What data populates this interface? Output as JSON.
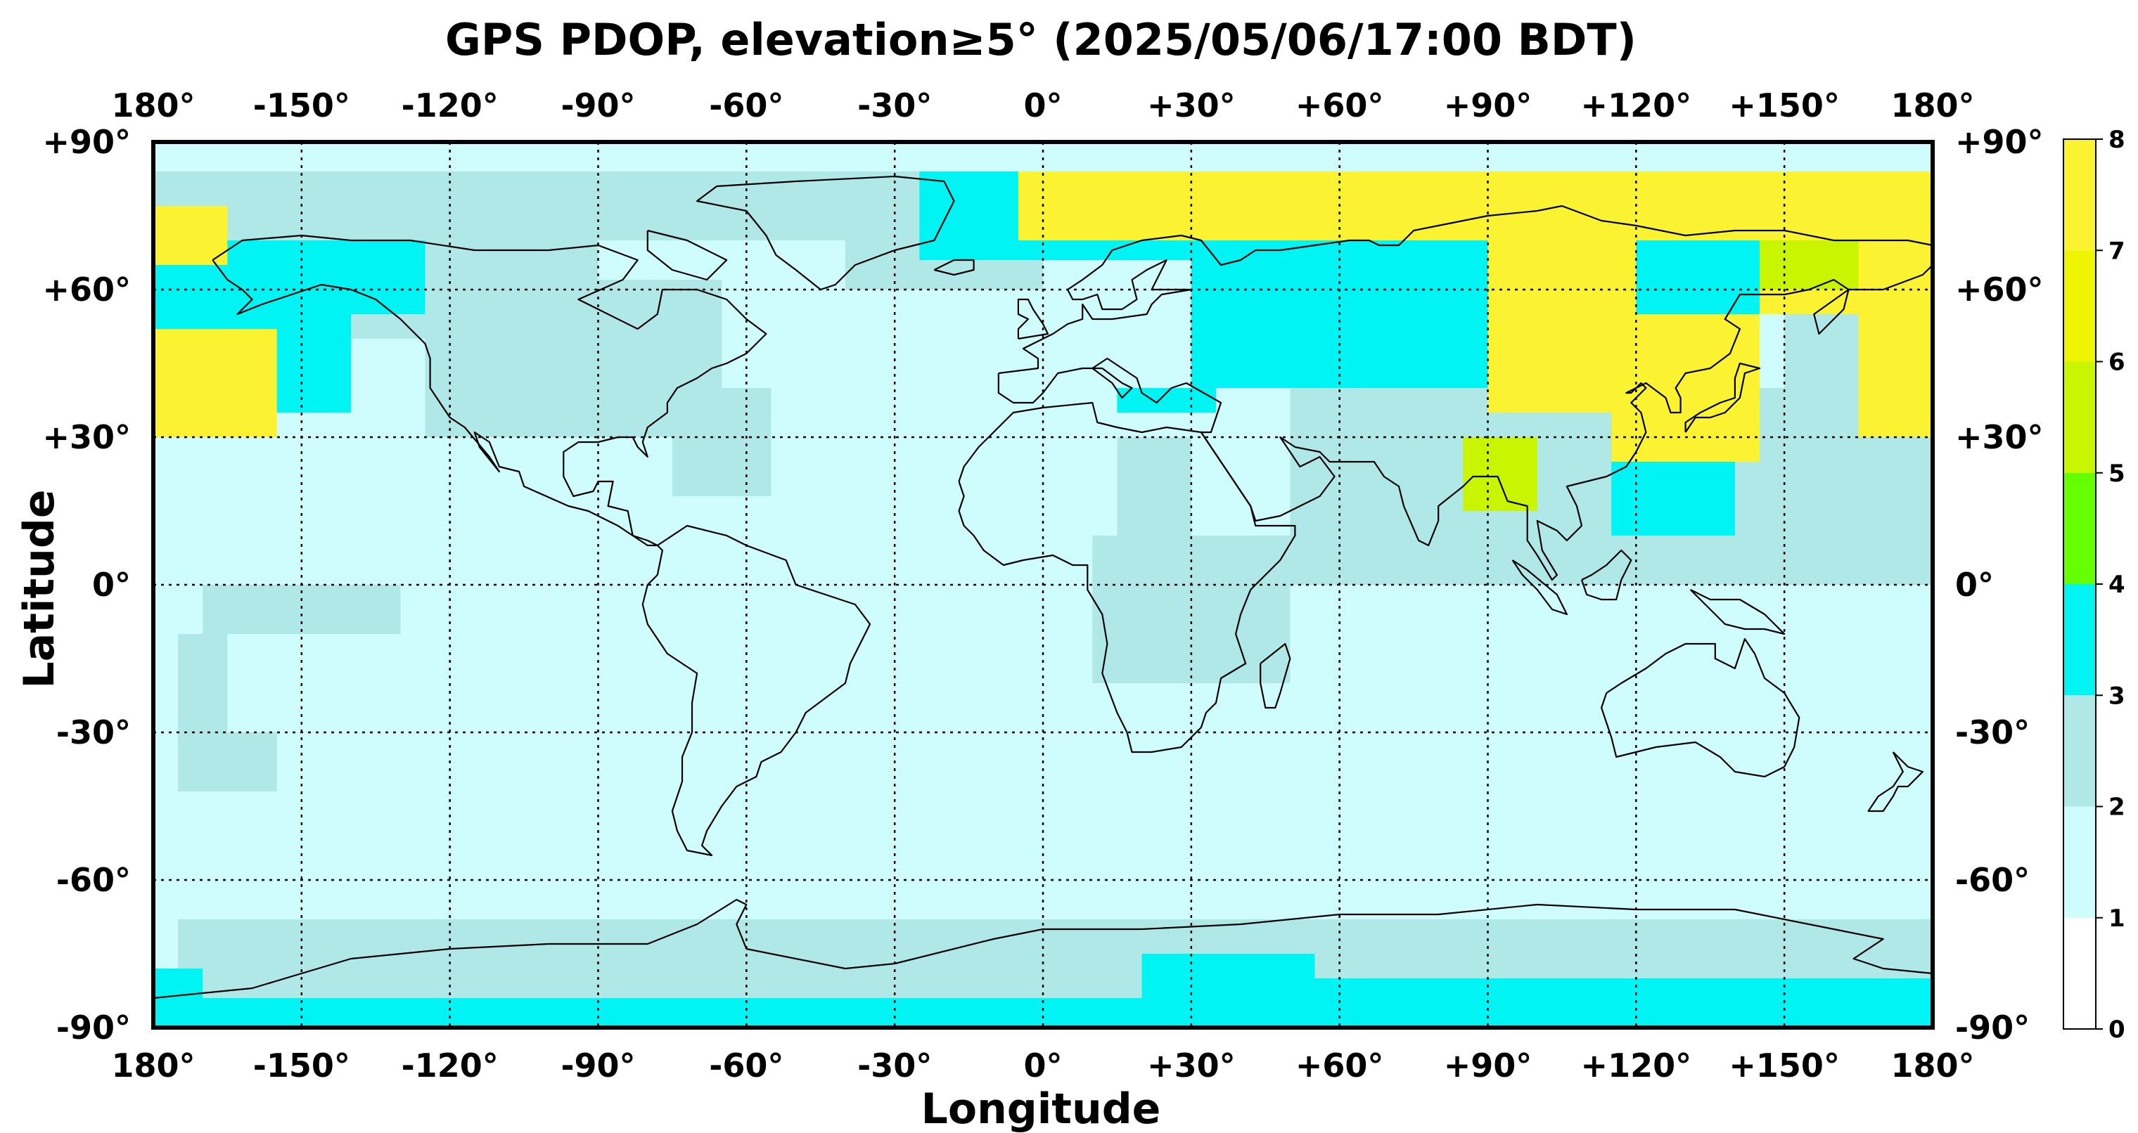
{
  "title": "GPS PDOP, elevation≥5° (2025/05/06/17:00 BDT)",
  "xlabel": "Longitude",
  "ylabel": "Latitude",
  "lon_ticks": [
    {
      "value": -180,
      "label": "180°"
    },
    {
      "value": -150,
      "label": "-150°"
    },
    {
      "value": -120,
      "label": "-120°"
    },
    {
      "value": -90,
      "label": "-90°"
    },
    {
      "value": -60,
      "label": "-60°"
    },
    {
      "value": -30,
      "label": "-30°"
    },
    {
      "value": 0,
      "label": "0°"
    },
    {
      "value": 30,
      "label": "+30°"
    },
    {
      "value": 60,
      "label": "+60°"
    },
    {
      "value": 90,
      "label": "+90°"
    },
    {
      "value": 120,
      "label": "+120°"
    },
    {
      "value": 150,
      "label": "+150°"
    },
    {
      "value": 180,
      "label": "180°"
    }
  ],
  "lat_ticks": [
    {
      "value": 90,
      "label": "+90°"
    },
    {
      "value": 60,
      "label": "+60°"
    },
    {
      "value": 30,
      "label": "+30°"
    },
    {
      "value": 0,
      "label": "0°"
    },
    {
      "value": -30,
      "label": "-30°"
    },
    {
      "value": -60,
      "label": "-60°"
    },
    {
      "value": -90,
      "label": "-90°"
    }
  ],
  "colorbar": {
    "ticks": [
      "0",
      "1",
      "2",
      "3",
      "4",
      "5",
      "6",
      "7",
      "8"
    ],
    "colors": [
      "#ffffff",
      "#cffcfc",
      "#b0e8e8",
      "#00f4f4",
      "#66ff00",
      "#c9f500",
      "#eff500",
      "#fbf232"
    ]
  },
  "chart_data": {
    "type": "heatmap",
    "title": "GPS PDOP, elevation≥5° (2025/05/06/17:00 BDT)",
    "xlabel": "Longitude",
    "ylabel": "Latitude",
    "xlim": [
      -180,
      180
    ],
    "ylim": [
      -90,
      90
    ],
    "value_range": [
      0,
      8
    ],
    "grid": true,
    "default_level": 1,
    "regions": [
      {
        "level": 2,
        "lon": [
          -180,
          180
        ],
        "lat": [
          70,
          84
        ]
      },
      {
        "level": 2,
        "lon": [
          -180,
          -90
        ],
        "lat": [
          50,
          84
        ]
      },
      {
        "level": 2,
        "lon": [
          -125,
          -65
        ],
        "lat": [
          30,
          62
        ]
      },
      {
        "level": 2,
        "lon": [
          -75,
          -55
        ],
        "lat": [
          18,
          40
        ]
      },
      {
        "level": 2,
        "lon": [
          -40,
          0
        ],
        "lat": [
          60,
          84
        ]
      },
      {
        "level": 2,
        "lon": [
          50,
          150
        ],
        "lat": [
          0,
          40
        ]
      },
      {
        "level": 2,
        "lon": [
          150,
          180
        ],
        "lat": [
          0,
          60
        ]
      },
      {
        "level": 2,
        "lon": [
          -170,
          -130
        ],
        "lat": [
          -10,
          0
        ]
      },
      {
        "level": 2,
        "lon": [
          -175,
          -165
        ],
        "lat": [
          -40,
          -10
        ]
      },
      {
        "level": 2,
        "lon": [
          -175,
          -155
        ],
        "lat": [
          -42,
          -30
        ]
      },
      {
        "level": 2,
        "lon": [
          -175,
          180
        ],
        "lat": [
          -90,
          -68
        ]
      },
      {
        "level": 2,
        "lon": [
          10,
          50
        ],
        "lat": [
          -20,
          10
        ]
      },
      {
        "level": 2,
        "lon": [
          15,
          30
        ],
        "lat": [
          10,
          30
        ]
      },
      {
        "level": 3,
        "lon": [
          -180,
          -140
        ],
        "lat": [
          35,
          70
        ]
      },
      {
        "level": 3,
        "lon": [
          -155,
          -125
        ],
        "lat": [
          55,
          70
        ]
      },
      {
        "level": 3,
        "lon": [
          -25,
          55
        ],
        "lat": [
          66,
          84
        ]
      },
      {
        "level": 3,
        "lon": [
          30,
          90
        ],
        "lat": [
          40,
          66
        ]
      },
      {
        "level": 3,
        "lon": [
          15,
          35
        ],
        "lat": [
          35,
          40
        ]
      },
      {
        "level": 3,
        "lon": [
          55,
          100
        ],
        "lat": [
          40,
          70
        ]
      },
      {
        "level": 3,
        "lon": [
          115,
          140
        ],
        "lat": [
          10,
          35
        ]
      },
      {
        "level": 3,
        "lon": [
          100,
          180
        ],
        "lat": [
          55,
          70
        ]
      },
      {
        "level": 3,
        "lon": [
          -180,
          180
        ],
        "lat": [
          -90,
          -84
        ]
      },
      {
        "level": 3,
        "lon": [
          -180,
          -170
        ],
        "lat": [
          -84,
          -78
        ]
      },
      {
        "level": 3,
        "lon": [
          20,
          55
        ],
        "lat": [
          -90,
          -75
        ]
      },
      {
        "level": 3,
        "lon": [
          55,
          180
        ],
        "lat": [
          -90,
          -80
        ]
      },
      {
        "level": 5,
        "lon": [
          85,
          100
        ],
        "lat": [
          15,
          30
        ]
      },
      {
        "level": 7,
        "lon": [
          -180,
          -155
        ],
        "lat": [
          30,
          52
        ]
      },
      {
        "level": 7,
        "lon": [
          -180,
          -165
        ],
        "lat": [
          65,
          77
        ]
      },
      {
        "level": 7,
        "lon": [
          -5,
          180
        ],
        "lat": [
          70,
          84
        ]
      },
      {
        "level": 7,
        "lon": [
          90,
          120
        ],
        "lat": [
          35,
          70
        ]
      },
      {
        "level": 7,
        "lon": [
          115,
          145
        ],
        "lat": [
          25,
          55
        ]
      },
      {
        "level": 7,
        "lon": [
          145,
          180
        ],
        "lat": [
          55,
          75
        ]
      },
      {
        "level": 7,
        "lon": [
          165,
          180
        ],
        "lat": [
          30,
          60
        ]
      },
      {
        "level": 5,
        "lon": [
          145,
          165
        ],
        "lat": [
          60,
          70
        ]
      }
    ]
  }
}
